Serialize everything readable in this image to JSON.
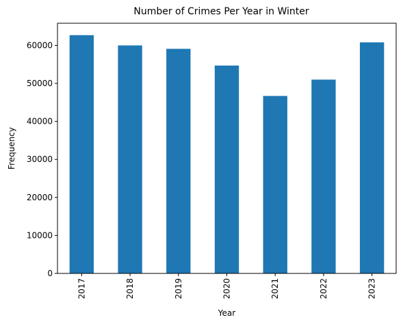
{
  "chart_data": {
    "type": "bar",
    "title": "Number of Crimes Per Year in Winter",
    "xlabel": "Year",
    "ylabel": "Frequency",
    "categories": [
      "2017",
      "2018",
      "2019",
      "2020",
      "2021",
      "2022",
      "2023"
    ],
    "values": [
      62700,
      60000,
      59100,
      54700,
      46700,
      51000,
      60800
    ],
    "ylim": [
      0,
      65835
    ],
    "yticks": [
      0,
      10000,
      20000,
      30000,
      40000,
      50000,
      60000
    ],
    "ytick_labels": [
      "0",
      "10000",
      "20000",
      "30000",
      "40000",
      "50000",
      "60000"
    ],
    "grid": false,
    "bar_color": "#1f77b4",
    "xtick_rotation": "vertical"
  }
}
